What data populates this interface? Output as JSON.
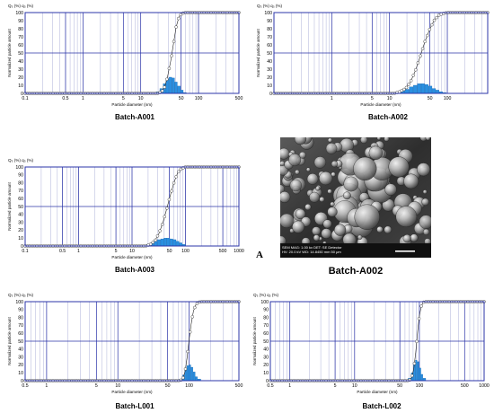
{
  "chart_data": [
    {
      "type": "bar+line",
      "panel_label": "Batch-A001",
      "y_left_label": "Normalized particle amount",
      "y_top_label": "Q₃ (%)  q₃ (%)",
      "xlabel": "Particle diameter (nm)",
      "x_scale": "log",
      "xlim": [
        0.1,
        500
      ],
      "ylim": [
        0,
        100
      ],
      "x_ticks": [
        "0.1",
        "0.5",
        "1",
        "5",
        "10",
        "50",
        "100",
        "500"
      ],
      "y_ticks": [
        "0",
        "10",
        "20",
        "30",
        "40",
        "50",
        "60",
        "70",
        "80",
        "90",
        "100"
      ],
      "cumulative_range": [
        0.1,
        500
      ],
      "cumulative_rise": [
        [
          20,
          0
        ],
        [
          23,
          2
        ],
        [
          26,
          8
        ],
        [
          29,
          20
        ],
        [
          33,
          40
        ],
        [
          37,
          62
        ],
        [
          41,
          82
        ],
        [
          46,
          95
        ],
        [
          52,
          99
        ],
        [
          58,
          100
        ]
      ],
      "histogram": [
        [
          20,
          2
        ],
        [
          23,
          6
        ],
        [
          26,
          12
        ],
        [
          29,
          18
        ],
        [
          33,
          20
        ],
        [
          37,
          19
        ],
        [
          41,
          14
        ],
        [
          46,
          9
        ],
        [
          52,
          4
        ],
        [
          58,
          1
        ]
      ]
    },
    {
      "type": "bar+line",
      "panel_label": "Batch-A002",
      "y_left_label": "Normalized particle amount",
      "y_top_label": "Q₃ (%)  q₃ (%)",
      "xlabel": "Particle diameter (nm)",
      "x_scale": "log",
      "xlim": [
        0.1,
        500
      ],
      "ylim": [
        0,
        100
      ],
      "x_ticks": [
        "1",
        "5",
        "10",
        "50",
        "100"
      ],
      "y_ticks": [
        "0",
        "10",
        "20",
        "30",
        "40",
        "50",
        "60",
        "70",
        "80",
        "90",
        "100"
      ],
      "cumulative_range": [
        0.1,
        500
      ],
      "cumulative_rise": [
        [
          12,
          0
        ],
        [
          15,
          2
        ],
        [
          19,
          6
        ],
        [
          23,
          14
        ],
        [
          28,
          28
        ],
        [
          34,
          46
        ],
        [
          41,
          64
        ],
        [
          50,
          80
        ],
        [
          60,
          91
        ],
        [
          72,
          97
        ],
        [
          86,
          99
        ],
        [
          100,
          100
        ]
      ],
      "histogram": [
        [
          14,
          1
        ],
        [
          17,
          3
        ],
        [
          20,
          5
        ],
        [
          24,
          8
        ],
        [
          28,
          10
        ],
        [
          33,
          12
        ],
        [
          38,
          12
        ],
        [
          44,
          11
        ],
        [
          51,
          9
        ],
        [
          59,
          6
        ],
        [
          68,
          4
        ],
        [
          78,
          2
        ],
        [
          90,
          1
        ]
      ]
    },
    {
      "type": "bar+line",
      "panel_label": "Batch-A003",
      "y_left_label": "Normalized particle amount",
      "y_top_label": "Q₃ (%)  q₃ (%)",
      "xlabel": "Particle diameter (nm)",
      "x_scale": "log",
      "xlim": [
        0.1,
        1000
      ],
      "ylim": [
        0,
        100
      ],
      "x_ticks": [
        "0.1",
        "0.5",
        "1",
        "5",
        "10",
        "50",
        "100",
        "500",
        "1000"
      ],
      "y_ticks": [
        "0",
        "10",
        "20",
        "30",
        "40",
        "50",
        "60",
        "70",
        "80",
        "90",
        "100"
      ],
      "cumulative_range": [
        0.1,
        1000
      ],
      "cumulative_rise": [
        [
          18,
          0
        ],
        [
          22,
          2
        ],
        [
          27,
          7
        ],
        [
          32,
          16
        ],
        [
          38,
          30
        ],
        [
          45,
          48
        ],
        [
          53,
          66
        ],
        [
          62,
          82
        ],
        [
          72,
          93
        ],
        [
          84,
          98
        ],
        [
          98,
          100
        ]
      ],
      "histogram": [
        [
          20,
          2
        ],
        [
          24,
          4
        ],
        [
          28,
          6
        ],
        [
          32,
          8
        ],
        [
          37,
          9
        ],
        [
          42,
          10
        ],
        [
          48,
          10
        ],
        [
          55,
          9
        ],
        [
          63,
          8
        ],
        [
          72,
          6
        ],
        [
          82,
          4
        ],
        [
          94,
          2
        ]
      ]
    },
    {
      "type": "bar+line",
      "panel_label": "Batch-L001",
      "y_left_label": "Normalized particle amount",
      "y_top_label": "Q₃ (%)  q₃ (%)",
      "xlabel": "Particle diameter (nm)",
      "x_scale": "log",
      "xlim": [
        0.5,
        500
      ],
      "ylim": [
        0,
        100
      ],
      "x_ticks": [
        "0.5",
        "1",
        "5",
        "10",
        "50",
        "100",
        "500"
      ],
      "y_ticks": [
        "0",
        "10",
        "20",
        "30",
        "40",
        "50",
        "60",
        "70",
        "80",
        "90",
        "100"
      ],
      "cumulative_range": [
        0.5,
        500
      ],
      "cumulative_rise": [
        [
          75,
          0
        ],
        [
          82,
          3
        ],
        [
          88,
          12
        ],
        [
          94,
          30
        ],
        [
          100,
          52
        ],
        [
          107,
          72
        ],
        [
          115,
          88
        ],
        [
          124,
          96
        ],
        [
          134,
          99
        ],
        [
          145,
          100
        ]
      ],
      "histogram": [
        [
          78,
          2
        ],
        [
          84,
          7
        ],
        [
          90,
          14
        ],
        [
          96,
          19
        ],
        [
          103,
          20
        ],
        [
          110,
          17
        ],
        [
          118,
          11
        ],
        [
          127,
          5
        ],
        [
          137,
          2
        ]
      ]
    },
    {
      "type": "bar+line",
      "panel_label": "Batch-L002",
      "y_left_label": "Normalized particle amount",
      "y_top_label": "Q₃ (%)  q₃ (%)",
      "xlabel": "Particle diameter (nm)",
      "x_scale": "log",
      "xlim": [
        0.5,
        1000
      ],
      "ylim": [
        0,
        100
      ],
      "x_ticks": [
        "0.5",
        "1",
        "5",
        "10",
        "50",
        "100",
        "500",
        "1000"
      ],
      "y_ticks": [
        "0",
        "10",
        "20",
        "30",
        "40",
        "50",
        "60",
        "70",
        "80",
        "90",
        "100"
      ],
      "cumulative_range": [
        0.5,
        1000
      ],
      "cumulative_rise": [
        [
          70,
          0
        ],
        [
          76,
          4
        ],
        [
          82,
          15
        ],
        [
          88,
          36
        ],
        [
          94,
          62
        ],
        [
          100,
          82
        ],
        [
          107,
          94
        ],
        [
          114,
          99
        ],
        [
          122,
          100
        ]
      ],
      "histogram": [
        [
          72,
          3
        ],
        [
          78,
          10
        ],
        [
          84,
          20
        ],
        [
          90,
          26
        ],
        [
          96,
          24
        ],
        [
          103,
          16
        ],
        [
          110,
          8
        ],
        [
          118,
          3
        ]
      ]
    }
  ],
  "sem": {
    "title": "Batch-A002",
    "letter": "A",
    "info_line1": "SEM MAG: 1.00 kx     DET: SE Detector",
    "info_line2": "HV: 20.0 kV          WD: 14.8450 mm          50 μm"
  }
}
